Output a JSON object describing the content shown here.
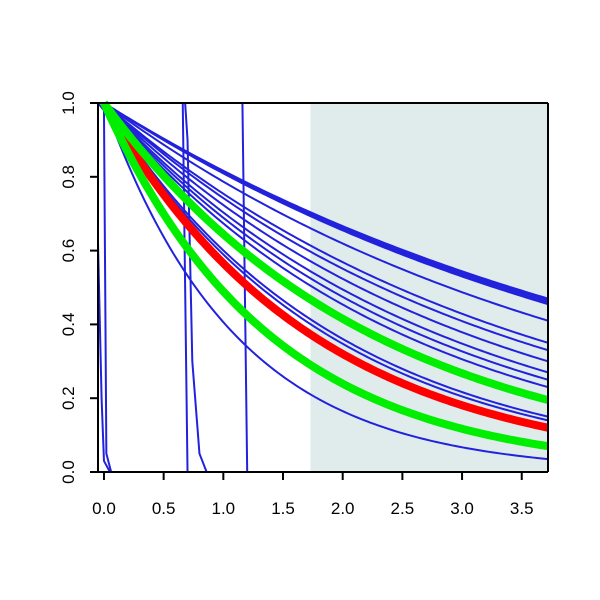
{
  "chart_data": {
    "type": "line",
    "title": "",
    "xlabel": "",
    "ylabel": "",
    "xlim": [
      -0.05,
      3.72
    ],
    "ylim": [
      0.0,
      1.0
    ],
    "x_ticks": [
      0.0,
      0.5,
      1.0,
      1.5,
      2.0,
      2.5,
      3.0,
      3.5
    ],
    "x_tick_labels": [
      "0.0",
      "0.5",
      "1.0",
      "1.5",
      "2.0",
      "2.5",
      "3.0",
      "3.5"
    ],
    "y_ticks": [
      0.0,
      0.2,
      0.4,
      0.6,
      0.8,
      1.0
    ],
    "y_tick_labels": [
      "0.0",
      "0.2",
      "0.4",
      "0.6",
      "0.8",
      "1.0"
    ],
    "grid": false,
    "legend": "none",
    "shaded_region": {
      "x": [
        1.73,
        3.72
      ],
      "color": "#e0ecec"
    },
    "colors": {
      "blue": "#2222dd",
      "red": "#ff0000",
      "green": "#00ee00",
      "axis": "#000000"
    },
    "series": [
      {
        "color": "blue",
        "style": "exp",
        "points": [
          [
            0.0,
            1.0
          ],
          [
            3.72,
            0.47
          ]
        ]
      },
      {
        "color": "blue",
        "style": "exp",
        "points": [
          [
            0.0,
            1.0
          ],
          [
            3.72,
            0.465
          ]
        ]
      },
      {
        "color": "blue",
        "style": "exp",
        "points": [
          [
            0.0,
            1.0
          ],
          [
            3.72,
            0.46
          ]
        ]
      },
      {
        "color": "blue",
        "style": "exp",
        "points": [
          [
            0.0,
            1.0
          ],
          [
            3.72,
            0.455
          ]
        ]
      },
      {
        "color": "blue",
        "style": "exp",
        "points": [
          [
            0.0,
            1.0
          ],
          [
            3.72,
            0.41
          ]
        ]
      },
      {
        "color": "blue",
        "style": "exp",
        "points": [
          [
            0.0,
            1.0
          ],
          [
            3.72,
            0.35
          ]
        ]
      },
      {
        "color": "blue",
        "style": "exp",
        "points": [
          [
            0.0,
            1.0
          ],
          [
            3.72,
            0.33
          ]
        ]
      },
      {
        "color": "blue",
        "style": "exp",
        "points": [
          [
            0.0,
            1.0
          ],
          [
            3.72,
            0.3
          ]
        ]
      },
      {
        "color": "blue",
        "style": "exp",
        "points": [
          [
            0.0,
            1.0
          ],
          [
            3.72,
            0.27
          ]
        ]
      },
      {
        "color": "blue",
        "style": "exp",
        "points": [
          [
            0.0,
            1.0
          ],
          [
            3.72,
            0.25
          ]
        ]
      },
      {
        "color": "blue",
        "style": "exp",
        "points": [
          [
            0.0,
            1.0
          ],
          [
            3.72,
            0.23
          ]
        ]
      },
      {
        "color": "blue",
        "style": "exp",
        "points": [
          [
            0.0,
            1.0
          ],
          [
            3.72,
            0.2
          ]
        ]
      },
      {
        "color": "blue",
        "style": "exp",
        "points": [
          [
            0.0,
            1.0
          ],
          [
            3.72,
            0.15
          ]
        ]
      },
      {
        "color": "blue",
        "style": "exp",
        "points": [
          [
            0.0,
            1.0
          ],
          [
            3.72,
            0.14
          ]
        ]
      },
      {
        "color": "blue",
        "style": "exp",
        "points": [
          [
            0.0,
            1.0
          ],
          [
            3.72,
            0.035
          ]
        ]
      },
      {
        "color": "blue",
        "style": "drop",
        "points": [
          [
            -0.05,
            0.62
          ],
          [
            -0.02,
            0.2
          ],
          [
            0.0,
            0.03
          ],
          [
            0.05,
            0.0
          ],
          [
            3.72,
            0.0
          ]
        ]
      },
      {
        "color": "blue",
        "style": "drop",
        "points": [
          [
            -0.05,
            1.0
          ],
          [
            0.0,
            0.98
          ],
          [
            0.02,
            0.05
          ],
          [
            0.06,
            0.0
          ],
          [
            3.72,
            0.0
          ]
        ]
      },
      {
        "color": "blue",
        "style": "drop",
        "points": [
          [
            0.0,
            1.0
          ],
          [
            0.66,
            1.0
          ],
          [
            0.68,
            0.5
          ],
          [
            0.7,
            0.0
          ],
          [
            3.72,
            0.0
          ]
        ]
      },
      {
        "color": "blue",
        "style": "drop",
        "points": [
          [
            0.0,
            1.0
          ],
          [
            0.68,
            1.0
          ],
          [
            0.7,
            0.9
          ],
          [
            0.74,
            0.3
          ],
          [
            0.8,
            0.05
          ],
          [
            0.86,
            0.0
          ],
          [
            3.72,
            0.0
          ]
        ]
      },
      {
        "color": "blue",
        "style": "drop",
        "points": [
          [
            0.0,
            1.0
          ],
          [
            1.16,
            1.0
          ],
          [
            1.18,
            0.5
          ],
          [
            1.2,
            0.0
          ],
          [
            3.72,
            0.0
          ]
        ]
      },
      {
        "color": "red",
        "width": 8,
        "style": "exp",
        "points": [
          [
            0.0,
            1.0
          ],
          [
            3.72,
            0.12
          ]
        ]
      },
      {
        "color": "green",
        "width": 8,
        "style": "exp",
        "points": [
          [
            0.0,
            1.0
          ],
          [
            3.72,
            0.195
          ]
        ]
      },
      {
        "color": "green",
        "width": 8,
        "style": "exp",
        "points": [
          [
            0.0,
            1.0
          ],
          [
            3.72,
            0.07
          ]
        ]
      }
    ]
  }
}
